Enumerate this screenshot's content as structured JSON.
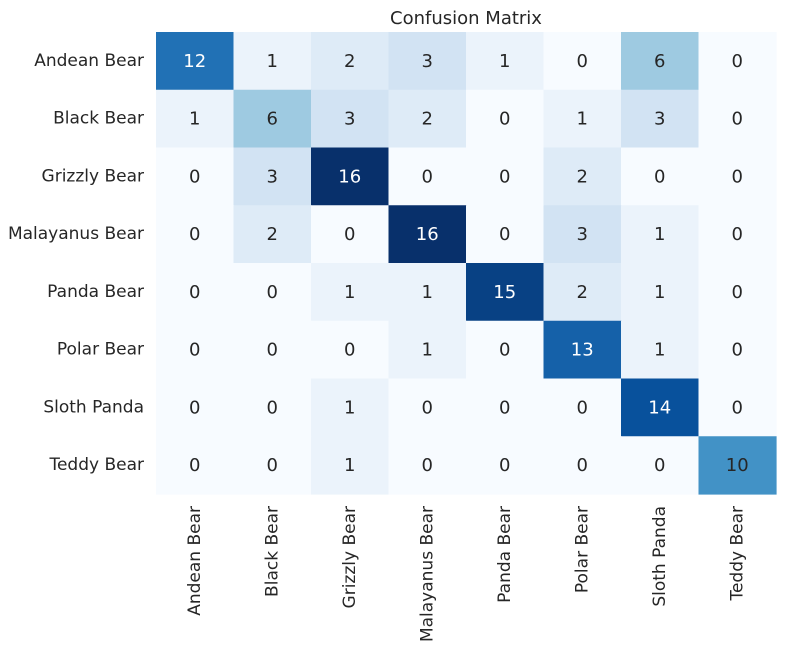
{
  "chart_data": {
    "type": "heatmap",
    "title": "Confusion Matrix",
    "xlabel": "",
    "ylabel": "",
    "row_labels": [
      "Andean Bear",
      "Black Bear",
      "Grizzly Bear",
      "Malayanus Bear",
      "Panda Bear",
      "Polar Bear",
      "Sloth Panda",
      "Teddy Bear"
    ],
    "col_labels": [
      "Andean Bear",
      "Black Bear",
      "Grizzly Bear",
      "Malayanus Bear",
      "Panda Bear",
      "Polar Bear",
      "Sloth Panda",
      "Teddy Bear"
    ],
    "values": [
      [
        12,
        1,
        2,
        3,
        1,
        0,
        6,
        0
      ],
      [
        1,
        6,
        3,
        2,
        0,
        1,
        3,
        0
      ],
      [
        0,
        3,
        16,
        0,
        0,
        2,
        0,
        0
      ],
      [
        0,
        2,
        0,
        16,
        0,
        3,
        1,
        0
      ],
      [
        0,
        0,
        1,
        1,
        15,
        2,
        1,
        0
      ],
      [
        0,
        0,
        0,
        1,
        0,
        13,
        1,
        0
      ],
      [
        0,
        0,
        1,
        0,
        0,
        0,
        14,
        0
      ],
      [
        0,
        0,
        1,
        0,
        0,
        0,
        0,
        10
      ]
    ],
    "value_range": [
      0,
      16
    ],
    "colormap": "Blues",
    "colorbar": false,
    "grid": false
  }
}
